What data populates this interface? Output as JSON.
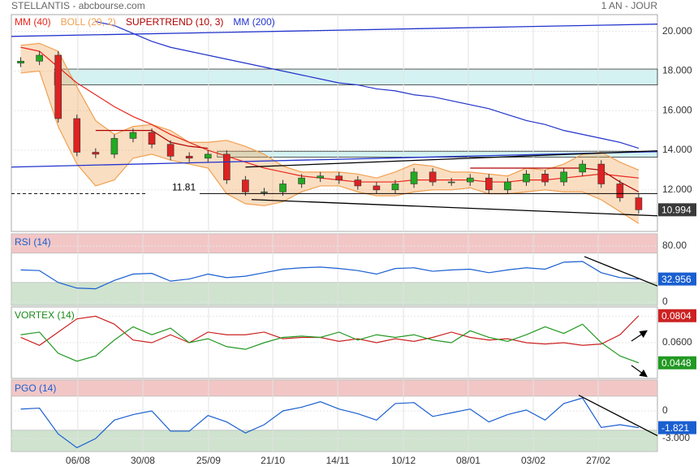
{
  "header": {
    "title": "STELLANTIS - abcbourse.com",
    "period": "1 AN - JOUR"
  },
  "x_axis": {
    "x": [
      0,
      1,
      2,
      3,
      4,
      5,
      6,
      7,
      8,
      9,
      10,
      11,
      12,
      13,
      14,
      15,
      16,
      17,
      18,
      19,
      20,
      21,
      22,
      23,
      24,
      25,
      26,
      27,
      28,
      29,
      30,
      31,
      32,
      33
    ],
    "xlim": [
      -0.5,
      34
    ],
    "xticks": [
      {
        "value": 3.05,
        "label": "06/08"
      },
      {
        "value": 6.52,
        "label": "30/08"
      },
      {
        "value": 10.03,
        "label": "25/09"
      },
      {
        "value": 13.46,
        "label": "21/10"
      },
      {
        "value": 16.93,
        "label": "14/11"
      },
      {
        "value": 20.44,
        "label": "10/12"
      },
      {
        "value": 23.9,
        "label": "08/01"
      },
      {
        "value": 27.37,
        "label": "03/02"
      },
      {
        "value": 30.84,
        "label": "27/02"
      }
    ]
  },
  "chart_data": [
    {
      "type": "candlestick",
      "ylim": [
        9.9,
        20.85
      ],
      "yticks": [
        {
          "value": 12,
          "label": "12.000"
        },
        {
          "value": 14,
          "label": "14.000"
        },
        {
          "value": 16,
          "label": "16.000"
        },
        {
          "value": 18,
          "label": "18.000"
        },
        {
          "value": 20,
          "label": "20.000"
        }
      ],
      "open": [
        18.4,
        18.5,
        18.8,
        15.6,
        13.9,
        13.8,
        14.6,
        14.9,
        14.3,
        13.7,
        13.6,
        13.8,
        12.5,
        11.9,
        11.9,
        12.3,
        12.6,
        12.7,
        12.5,
        12.2,
        12.0,
        12.3,
        12.9,
        12.4,
        12.4,
        12.6,
        12.0,
        12.4,
        12.8,
        12.4,
        12.9,
        13.3,
        12.3,
        11.6
      ],
      "high": [
        18.7,
        19.0,
        19.0,
        15.8,
        14.1,
        14.8,
        15.1,
        15.1,
        14.5,
        13.9,
        14.0,
        14.0,
        12.7,
        12.1,
        12.5,
        12.8,
        12.9,
        12.9,
        12.7,
        12.4,
        12.5,
        13.1,
        13.1,
        12.6,
        12.8,
        12.8,
        12.6,
        13.0,
        13.0,
        13.1,
        13.5,
        13.5,
        12.5,
        11.8
      ],
      "low": [
        18.2,
        18.3,
        15.4,
        13.7,
        13.6,
        13.6,
        14.4,
        14.1,
        13.5,
        13.4,
        13.4,
        12.3,
        11.7,
        11.7,
        11.7,
        12.1,
        12.4,
        12.3,
        12.0,
        11.8,
        11.8,
        12.1,
        12.2,
        12.2,
        12.2,
        11.8,
        11.8,
        12.2,
        12.2,
        12.2,
        12.7,
        12.1,
        11.4,
        10.8
      ],
      "close": [
        18.5,
        18.8,
        15.6,
        13.9,
        13.8,
        14.6,
        14.9,
        14.3,
        13.7,
        13.6,
        13.8,
        12.5,
        11.9,
        11.9,
        12.3,
        12.6,
        12.7,
        12.5,
        12.2,
        12.0,
        12.3,
        12.9,
        12.4,
        12.4,
        12.6,
        12.0,
        12.4,
        12.8,
        12.4,
        12.9,
        13.3,
        12.3,
        11.6,
        10.994
      ],
      "up_color": "#22aa22",
      "down_color": "#dd2222",
      "last_color": "#3a3a3a",
      "series": [
        {
          "name": "MM (40)",
          "color": "#e8281e",
          "values": [
            19.2,
            19.0,
            18.2,
            17.4,
            16.8,
            16.2,
            15.7,
            15.3,
            14.8,
            14.4,
            14.0,
            13.7,
            13.4,
            13.1,
            12.9,
            12.7,
            12.6,
            12.5,
            12.4,
            12.4,
            12.4,
            12.5,
            12.5,
            12.5,
            12.5,
            12.4,
            12.4,
            12.5,
            12.5,
            12.6,
            12.7,
            12.8,
            12.7,
            12.6
          ]
        },
        {
          "name": "BOLL (20, 2)",
          "color": "#f0a050",
          "upper": [
            19.3,
            19.4,
            19.0,
            17.2,
            15.5,
            14.8,
            15.2,
            15.3,
            15.0,
            14.4,
            14.4,
            14.5,
            14.2,
            13.8,
            13.2,
            12.9,
            12.9,
            12.9,
            12.8,
            12.6,
            12.9,
            13.3,
            13.2,
            12.9,
            12.9,
            12.8,
            12.7,
            13.1,
            13.0,
            13.3,
            13.8,
            13.9,
            13.4,
            13.0
          ],
          "lower": [
            17.9,
            18.0,
            15.2,
            13.3,
            12.2,
            12.5,
            13.6,
            13.8,
            13.5,
            13.3,
            13.1,
            11.8,
            11.3,
            11.2,
            11.4,
            11.9,
            12.2,
            12.2,
            11.9,
            11.7,
            11.7,
            11.9,
            12.0,
            12.0,
            12.1,
            11.8,
            11.8,
            11.9,
            12.0,
            11.9,
            11.9,
            11.5,
            10.9,
            10.3
          ]
        },
        {
          "name": "SUPERTREND (10, 3)",
          "color": "#b00000",
          "values": [
            null,
            null,
            null,
            null,
            15.0,
            15.0,
            15.0,
            15.0,
            14.4,
            14.2,
            14.1,
            null,
            null,
            null,
            null,
            null,
            null,
            null,
            null,
            null,
            null,
            null,
            null,
            null,
            13.1,
            13.1,
            13.1,
            13.1,
            13.1,
            13.1,
            13.1,
            13.0,
            12.4,
            11.9
          ]
        },
        {
          "name": "MM (200)",
          "color": "#2233cc",
          "values": [
            null,
            null,
            null,
            null,
            20.5,
            20.3,
            19.9,
            19.5,
            19.2,
            19.0,
            18.8,
            18.6,
            18.4,
            18.2,
            18.0,
            17.8,
            17.6,
            17.4,
            17.3,
            17.1,
            17.0,
            16.8,
            16.7,
            16.5,
            16.3,
            16.1,
            15.8,
            15.5,
            15.3,
            15.0,
            14.8,
            14.6,
            14.4,
            14.1
          ]
        }
      ],
      "zones": [
        {
          "x": [
            1.8,
            34
          ],
          "y": [
            17.3,
            18.1
          ],
          "color": "#d4f2f2"
        },
        {
          "x": [
            10.5,
            34
          ],
          "y": [
            13.65,
            13.95
          ],
          "color": "#d4f2f2"
        }
      ],
      "trendlines": [
        {
          "x": [
            -0.5,
            34
          ],
          "y": [
            13.15,
            13.93
          ],
          "color": "#2233cc"
        },
        {
          "x": [
            -0.5,
            34
          ],
          "y": [
            19.75,
            20.37
          ],
          "color": "#2233cc"
        },
        {
          "x": [
            12.0,
            34
          ],
          "y": [
            13.15,
            13.97
          ],
          "color": "#000000"
        },
        {
          "x": [
            12.33,
            34
          ],
          "y": [
            11.51,
            10.69
          ],
          "color": "#000000"
        }
      ],
      "level": 11.81
    },
    {
      "type": "line",
      "title": "RSI (14)",
      "title_color": "#1a5fd0",
      "ylim": [
        -4.6,
        97.4
      ],
      "yticks": [
        0,
        {
          "value": 80,
          "label": "80.00"
        }
      ],
      "zones": [
        {
          "y": [
            70,
            97.4
          ],
          "color": "#f3c6c6"
        },
        {
          "y": [
            -4.6,
            28
          ],
          "color": "#cfe3cf"
        }
      ],
      "series": [
        {
          "color": "#1a5fd0",
          "values": [
            46,
            45,
            28,
            20,
            19,
            31,
            40,
            41,
            30,
            33,
            40,
            35,
            37,
            42,
            47,
            49,
            50,
            48,
            45,
            40,
            48,
            49,
            44,
            46,
            47,
            42,
            46,
            49,
            47,
            57,
            58,
            42,
            35,
            32.956
          ]
        }
      ],
      "trendlines": [
        {
          "x": [
            30.1,
            34
          ],
          "y": [
            65,
            23
          ],
          "color": "#000000"
        }
      ]
    },
    {
      "type": "line",
      "title": "VORTEX (14)",
      "title_color": "#1a8a1a",
      "ylim": [
        0.033,
        0.087
      ],
      "yticks": [
        {
          "value": 0.06,
          "label": "0.0600"
        },
        {
          "value": 0.08,
          "label": "0.0800"
        }
      ],
      "series": [
        {
          "color": "#cc2222",
          "values": [
            0.064,
            0.058,
            0.068,
            0.078,
            0.08,
            0.074,
            0.062,
            0.06,
            0.066,
            0.06,
            0.068,
            0.066,
            0.066,
            0.068,
            0.063,
            0.064,
            0.064,
            0.061,
            0.063,
            0.06,
            0.063,
            0.061,
            0.064,
            0.068,
            0.064,
            0.062,
            0.063,
            0.06,
            0.059,
            0.06,
            0.058,
            0.059,
            0.066,
            0.0804
          ]
        },
        {
          "color": "#229922",
          "values": [
            0.066,
            0.068,
            0.052,
            0.046,
            0.05,
            0.062,
            0.072,
            0.066,
            0.071,
            0.06,
            0.063,
            0.057,
            0.055,
            0.06,
            0.064,
            0.065,
            0.064,
            0.068,
            0.062,
            0.066,
            0.064,
            0.066,
            0.062,
            0.06,
            0.069,
            0.064,
            0.061,
            0.066,
            0.072,
            0.067,
            0.074,
            0.06,
            0.05,
            0.0448
          ]
        }
      ]
    },
    {
      "type": "line",
      "title": "PGO (14)",
      "title_color": "#1a5fd0",
      "ylim": [
        -4.41,
        3.35
      ],
      "yticks": [
        {
          "value": -3,
          "label": "-3.000"
        },
        0
      ],
      "zones": [
        {
          "y": [
            1.6,
            3.35
          ],
          "color": "#f3c6c6"
        },
        {
          "y": [
            -4.41,
            -2.1
          ],
          "color": "#cfe3cf"
        }
      ],
      "series": [
        {
          "color": "#1a5fd0",
          "values": [
            0.2,
            0.3,
            -2.5,
            -4.0,
            -3.0,
            -1.0,
            -0.4,
            0.0,
            -2.2,
            -2.2,
            -0.5,
            -1.2,
            -2.4,
            -1.5,
            0.0,
            0.4,
            1.0,
            0.2,
            -0.3,
            -1.0,
            0.8,
            0.9,
            -0.6,
            -0.2,
            0.2,
            -1.2,
            -0.4,
            0.1,
            -1.0,
            0.8,
            1.4,
            -1.8,
            -1.5,
            -1.821
          ]
        }
      ],
      "trendlines": [
        {
          "x": [
            29.8,
            34
          ],
          "y": [
            1.7,
            -2.7
          ],
          "color": "#000000"
        }
      ]
    }
  ]
}
